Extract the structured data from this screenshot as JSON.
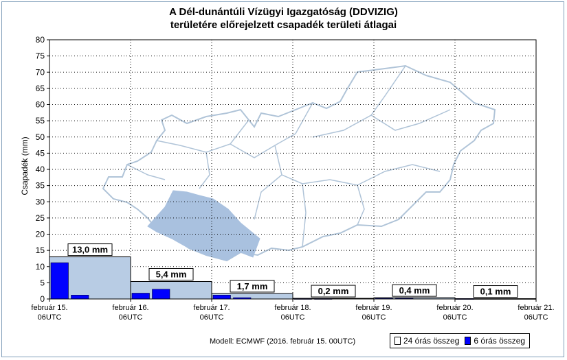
{
  "title_line1": "A Dél-dunántúli Vízügyi Igazgatóság (DDVIZIG)",
  "title_line2": "területére előrejelzett csapadék területi átlagai",
  "model_text": "Modell: ECMWF (2016. február 15. 00UTC)",
  "legend": {
    "label_24h": "24 órás összeg",
    "label_6h": "6 órás összeg"
  },
  "colors": {
    "bar_24h": "#b8cce4",
    "bar_6h": "#0000ff",
    "map_outline": "#b0c4d8",
    "map_region": "#a9c1df",
    "grid": "#000000"
  },
  "chart_data": {
    "type": "bar",
    "ylabel": "Csapadék (mm)",
    "ylim": [
      0,
      80
    ],
    "ytick_step": 5,
    "grid": true,
    "x_ticks": [
      {
        "line1": "február 15.",
        "line2": "06UTC"
      },
      {
        "line1": "február 16.",
        "line2": "06UTC"
      },
      {
        "line1": "február 17.",
        "line2": "06UTC"
      },
      {
        "line1": "február 18.",
        "line2": "06UTC"
      },
      {
        "line1": "február 19.",
        "line2": "06UTC"
      },
      {
        "line1": "február 20.",
        "line2": "06UTC"
      },
      {
        "line1": "február 21.",
        "line2": "06UTC"
      }
    ],
    "series": [
      {
        "name": "24 órás összeg",
        "values": [
          13.0,
          5.4,
          1.7,
          0.2,
          0.4,
          0.1
        ],
        "labels": [
          "13,0 mm",
          "5,4 mm",
          "1,7 mm",
          "0,2 mm",
          "0,4 mm",
          "0,1 mm"
        ]
      },
      {
        "name": "6 órás összeg",
        "values": [
          11.2,
          1.2,
          0,
          0,
          1.8,
          3.0,
          0,
          0,
          1.2,
          0.4,
          0,
          0,
          0.1,
          0.1,
          0,
          0,
          0.2,
          0.2,
          0,
          0,
          0.1,
          0,
          0,
          0
        ]
      }
    ]
  }
}
